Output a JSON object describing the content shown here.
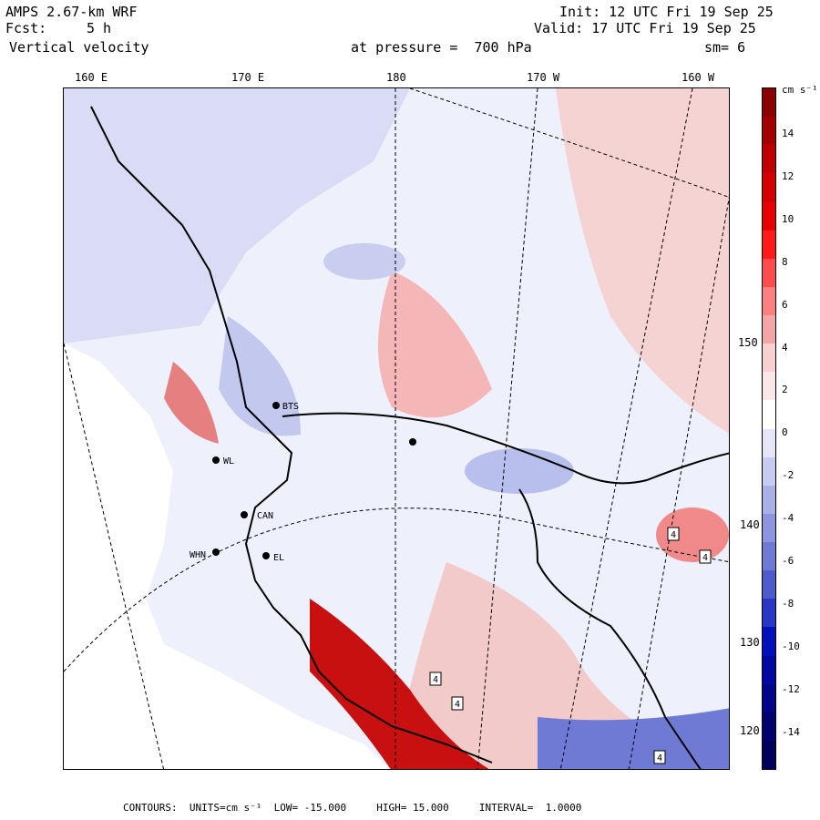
{
  "header": {
    "model": "AMPS 2.67-km WRF",
    "fcst_label": "Fcst:",
    "fcst_value": "5 h",
    "field": "Vertical velocity",
    "init": "Init: 12 UTC Fri 19 Sep 25",
    "valid": "Valid: 17 UTC Fri 19 Sep 25",
    "pressure": "at pressure =  700 hPa",
    "smoothing": "sm= 6"
  },
  "longitude_ticks": [
    "160 E",
    "170 E",
    "180",
    "170 W",
    "160 W"
  ],
  "latitude_ticks": [
    "150 W",
    "140 W",
    "130 W",
    "120 W"
  ],
  "colorbar": {
    "units": "cm s⁻¹",
    "labels": [
      "14",
      "12",
      "10",
      "8",
      "6",
      "4",
      "2",
      "0",
      "-2",
      "-4",
      "-6",
      "-8",
      "-10",
      "-12",
      "-14"
    ],
    "colors": [
      "#8b0000",
      "#a50000",
      "#be0000",
      "#d40000",
      "#e60000",
      "#ff1a1a",
      "#ff4d4d",
      "#ff8080",
      "#f4a6a6",
      "#f8d0d0",
      "#fbe7e7",
      "#ffffff",
      "#e4e6f7",
      "#c6cbef",
      "#a9b0e6",
      "#8c95de",
      "#6f7ad5",
      "#4f5bcc",
      "#2a36c4",
      "#0010bb",
      "#0008a0",
      "#000488",
      "#000270",
      "#00005a"
    ]
  },
  "stations": [
    {
      "name": "BTS"
    },
    {
      "name": "CAN"
    },
    {
      "name": "WHN"
    },
    {
      "name": "EL"
    },
    {
      "name": "WL"
    }
  ],
  "contour_label": "4",
  "footer": {
    "contours_label": "CONTOURS:",
    "units_label": "UNITS=cm s⁻¹",
    "low_label": "LOW=",
    "low_value": "-15.000",
    "high_label": "HIGH=",
    "high_value": "15.000",
    "interval_label": "INTERVAL=",
    "interval_value": "1.0000"
  }
}
